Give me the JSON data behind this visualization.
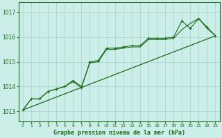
{
  "title": "Graphe pression niveau de la mer (hPa)",
  "bg_color": "#cceee8",
  "line_color": "#1a6b1a",
  "grid_color": "#aad4cc",
  "xlim": [
    -0.5,
    23.5
  ],
  "ylim": [
    1012.6,
    1017.4
  ],
  "yticks": [
    1013,
    1014,
    1015,
    1016,
    1017
  ],
  "xticks": [
    0,
    1,
    2,
    3,
    4,
    5,
    6,
    7,
    8,
    9,
    10,
    11,
    12,
    13,
    14,
    15,
    16,
    17,
    18,
    19,
    20,
    21,
    22,
    23
  ],
  "series1_x": [
    0,
    1,
    2,
    3,
    4,
    5,
    6,
    7,
    8,
    9,
    10,
    11,
    12,
    13,
    14,
    15,
    16,
    17,
    18,
    19,
    20,
    21,
    22,
    23
  ],
  "series1_y": [
    1013.05,
    1013.5,
    1013.5,
    1013.8,
    1013.9,
    1014.0,
    1014.2,
    1013.95,
    1015.0,
    1015.05,
    1015.55,
    1015.55,
    1015.6,
    1015.65,
    1015.65,
    1015.95,
    1015.95,
    1015.95,
    1016.0,
    1016.65,
    1016.35,
    1016.75,
    1016.4,
    1016.05
  ],
  "series2_x": [
    0,
    1,
    2,
    3,
    4,
    5,
    6,
    7,
    8,
    9,
    10,
    11,
    12,
    13,
    14,
    15,
    16,
    17,
    18,
    19,
    20,
    21,
    22,
    23
  ],
  "series2_y": [
    1013.05,
    1013.5,
    1013.5,
    1013.8,
    1013.9,
    1014.0,
    1014.25,
    1014.0,
    1014.95,
    1015.0,
    1015.5,
    1015.5,
    1015.55,
    1015.6,
    1015.6,
    1015.9,
    1015.9,
    1015.9,
    1015.95,
    1016.3,
    1016.55,
    1016.75,
    1016.35,
    1016.05
  ],
  "trend_x": [
    0,
    23
  ],
  "trend_y": [
    1013.05,
    1016.05
  ]
}
